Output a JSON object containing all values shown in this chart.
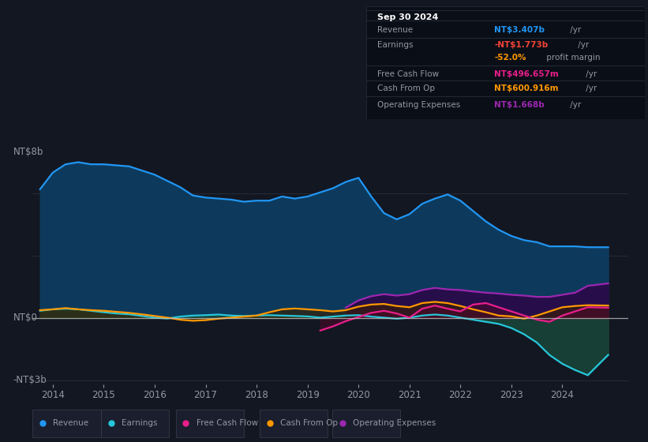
{
  "background_color": "#131722",
  "plot_bg_color": "#131722",
  "text_color": "#9598a1",
  "grid_color": "#2a2e39",
  "zero_line_color": "#c0c0c0",
  "xlim": [
    2013.6,
    2025.3
  ],
  "ylim": [
    -3.2,
    8.5
  ],
  "xticks": [
    2014,
    2015,
    2016,
    2017,
    2018,
    2019,
    2020,
    2021,
    2022,
    2023,
    2024
  ],
  "ylabel_top": "NT$8b",
  "ylabel_zero": "NT$0",
  "ylabel_neg": "-NT$3b",
  "legend": [
    {
      "label": "Revenue",
      "color": "#2196f3"
    },
    {
      "label": "Earnings",
      "color": "#26c6da"
    },
    {
      "label": "Free Cash Flow",
      "color": "#e91e8c"
    },
    {
      "label": "Cash From Op",
      "color": "#ff9800"
    },
    {
      "label": "Operating Expenses",
      "color": "#9c27b0"
    }
  ],
  "info_date": "Sep 30 2024",
  "info_rows": [
    {
      "label": "Revenue",
      "value": "NT$3.407b",
      "unit": " /yr",
      "value_color": "#2196f3",
      "indent": false
    },
    {
      "label": "Earnings",
      "value": "-NT$1.773b",
      "unit": " /yr",
      "value_color": "#f44336",
      "indent": false
    },
    {
      "label": "",
      "value": "-52.0%",
      "unit": " profit margin",
      "value_color": "#ff9800",
      "indent": true
    },
    {
      "label": "Free Cash Flow",
      "value": "NT$496.657m",
      "unit": " /yr",
      "value_color": "#e91e8c",
      "indent": false
    },
    {
      "label": "Cash From Op",
      "value": "NT$600.916m",
      "unit": " /yr",
      "value_color": "#ff9800",
      "indent": false
    },
    {
      "label": "Operating Expenses",
      "value": "NT$1.668b",
      "unit": " /yr",
      "value_color": "#9c27b0",
      "indent": false
    }
  ],
  "revenue": {
    "color": "#2196f3",
    "fill_color": "#0d3a5c",
    "x": [
      2013.75,
      2014.0,
      2014.25,
      2014.5,
      2014.75,
      2015.0,
      2015.25,
      2015.5,
      2015.75,
      2016.0,
      2016.25,
      2016.5,
      2016.75,
      2017.0,
      2017.25,
      2017.5,
      2017.75,
      2018.0,
      2018.25,
      2018.5,
      2018.75,
      2019.0,
      2019.25,
      2019.5,
      2019.75,
      2020.0,
      2020.25,
      2020.5,
      2020.75,
      2021.0,
      2021.25,
      2021.5,
      2021.75,
      2022.0,
      2022.25,
      2022.5,
      2022.75,
      2023.0,
      2023.25,
      2023.5,
      2023.75,
      2024.0,
      2024.25,
      2024.5,
      2024.9
    ],
    "y": [
      6.2,
      7.0,
      7.4,
      7.5,
      7.4,
      7.4,
      7.35,
      7.3,
      7.1,
      6.9,
      6.6,
      6.3,
      5.9,
      5.8,
      5.75,
      5.7,
      5.6,
      5.65,
      5.65,
      5.85,
      5.75,
      5.85,
      6.05,
      6.25,
      6.55,
      6.75,
      5.85,
      5.05,
      4.75,
      5.0,
      5.5,
      5.75,
      5.95,
      5.65,
      5.15,
      4.65,
      4.25,
      3.95,
      3.75,
      3.65,
      3.45,
      3.45,
      3.45,
      3.41,
      3.407
    ]
  },
  "earnings": {
    "color": "#26c6da",
    "fill_color": "#1a4a3a",
    "x": [
      2013.75,
      2014.0,
      2014.25,
      2014.5,
      2014.75,
      2015.0,
      2015.25,
      2015.5,
      2015.75,
      2016.0,
      2016.25,
      2016.5,
      2016.75,
      2017.0,
      2017.25,
      2017.5,
      2017.75,
      2018.0,
      2018.25,
      2018.5,
      2018.75,
      2019.0,
      2019.25,
      2019.5,
      2019.75,
      2020.0,
      2020.25,
      2020.5,
      2020.75,
      2021.0,
      2021.25,
      2021.5,
      2021.75,
      2022.0,
      2022.25,
      2022.5,
      2022.75,
      2023.0,
      2023.25,
      2023.5,
      2023.75,
      2024.0,
      2024.25,
      2024.5,
      2024.9
    ],
    "y": [
      0.35,
      0.42,
      0.45,
      0.42,
      0.35,
      0.28,
      0.22,
      0.18,
      0.1,
      0.02,
      -0.02,
      0.07,
      0.12,
      0.14,
      0.17,
      0.12,
      0.1,
      0.12,
      0.14,
      0.12,
      0.1,
      0.08,
      0.02,
      0.07,
      0.12,
      0.14,
      0.07,
      0.02,
      -0.03,
      0.02,
      0.12,
      0.17,
      0.12,
      0.02,
      -0.08,
      -0.18,
      -0.28,
      -0.48,
      -0.78,
      -1.18,
      -1.78,
      -2.2,
      -2.5,
      -2.75,
      -1.773
    ]
  },
  "free_cash_flow": {
    "color": "#e91e8c",
    "fill_color": "#4a0a2a",
    "x": [
      2019.25,
      2019.5,
      2019.75,
      2020.0,
      2020.25,
      2020.5,
      2020.75,
      2021.0,
      2021.25,
      2021.5,
      2021.75,
      2022.0,
      2022.25,
      2022.5,
      2022.75,
      2023.0,
      2023.25,
      2023.5,
      2023.75,
      2024.0,
      2024.25,
      2024.5,
      2024.9
    ],
    "y": [
      -0.6,
      -0.4,
      -0.15,
      0.05,
      0.25,
      0.35,
      0.22,
      0.02,
      0.45,
      0.6,
      0.45,
      0.32,
      0.65,
      0.72,
      0.52,
      0.32,
      0.12,
      -0.08,
      -0.18,
      0.12,
      0.32,
      0.52,
      0.497
    ]
  },
  "cash_from_op": {
    "color": "#ff9800",
    "fill_color": "#3a2000",
    "x": [
      2013.75,
      2014.0,
      2014.25,
      2014.5,
      2014.75,
      2015.0,
      2015.25,
      2015.5,
      2015.75,
      2016.0,
      2016.25,
      2016.5,
      2016.75,
      2017.0,
      2017.25,
      2017.5,
      2017.75,
      2018.0,
      2018.25,
      2018.5,
      2018.75,
      2019.0,
      2019.25,
      2019.5,
      2019.75,
      2020.0,
      2020.25,
      2020.5,
      2020.75,
      2021.0,
      2021.25,
      2021.5,
      2021.75,
      2022.0,
      2022.25,
      2022.5,
      2022.75,
      2023.0,
      2023.25,
      2023.5,
      2023.75,
      2024.0,
      2024.25,
      2024.5,
      2024.9
    ],
    "y": [
      0.38,
      0.42,
      0.48,
      0.42,
      0.38,
      0.35,
      0.3,
      0.25,
      0.18,
      0.1,
      0.02,
      -0.08,
      -0.13,
      -0.1,
      -0.03,
      0.02,
      0.07,
      0.12,
      0.28,
      0.42,
      0.46,
      0.42,
      0.38,
      0.32,
      0.38,
      0.55,
      0.65,
      0.68,
      0.58,
      0.52,
      0.72,
      0.78,
      0.72,
      0.58,
      0.42,
      0.28,
      0.12,
      0.08,
      -0.03,
      0.12,
      0.32,
      0.52,
      0.58,
      0.62,
      0.601
    ]
  },
  "op_expenses": {
    "color": "#9c27b0",
    "fill_color": "#2a0a4a",
    "x": [
      2019.75,
      2020.0,
      2020.25,
      2020.5,
      2020.75,
      2021.0,
      2021.25,
      2021.5,
      2021.75,
      2022.0,
      2022.25,
      2022.5,
      2022.75,
      2023.0,
      2023.25,
      2023.5,
      2023.75,
      2024.0,
      2024.25,
      2024.5,
      2024.9
    ],
    "y": [
      0.5,
      0.85,
      1.05,
      1.15,
      1.08,
      1.15,
      1.35,
      1.45,
      1.38,
      1.35,
      1.28,
      1.22,
      1.18,
      1.12,
      1.08,
      1.02,
      1.02,
      1.12,
      1.22,
      1.55,
      1.668
    ]
  }
}
